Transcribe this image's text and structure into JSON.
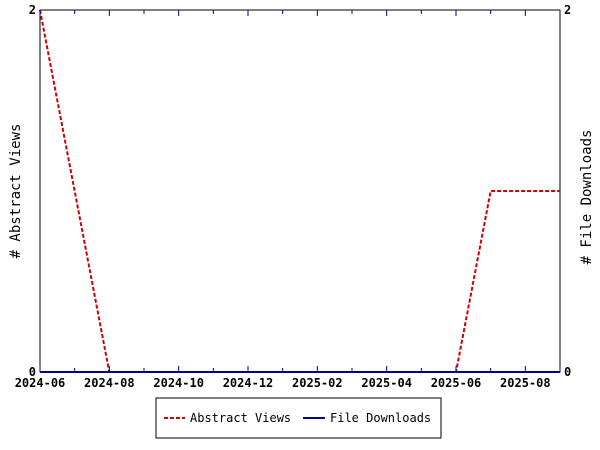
{
  "chart_data": {
    "type": "line",
    "x_unit": "month",
    "x_domain": [
      "2024-06",
      "2025-09"
    ],
    "x_ticks": [
      "2024-06",
      "2024-07",
      "2024-08",
      "2024-09",
      "2024-10",
      "2024-11",
      "2024-12",
      "2025-01",
      "2025-02",
      "2025-03",
      "2025-04",
      "2025-05",
      "2025-06",
      "2025-07",
      "2025-08",
      "2025-09"
    ],
    "x_tick_labels": [
      "2024-06",
      "2024-08",
      "2024-10",
      "2024-12",
      "2025-02",
      "2025-04",
      "2025-06",
      "2025-08"
    ],
    "y_left": {
      "label": "# Abstract Views",
      "range": [
        0,
        2
      ],
      "tick_labels": [
        "0",
        "2"
      ]
    },
    "y_right": {
      "label": "# File Downloads",
      "range": [
        0,
        2
      ],
      "tick_labels": [
        "0",
        "2"
      ]
    },
    "series": [
      {
        "name": "Abstract Views",
        "color": "#cc0000",
        "style": "dashed",
        "axis": "left",
        "x": [
          "2024-06",
          "2024-08",
          "2025-06",
          "2025-07",
          "2025-09"
        ],
        "y": [
          2,
          0,
          0,
          1,
          1
        ]
      },
      {
        "name": "File Downloads",
        "color": "#000099",
        "style": "solid",
        "axis": "right",
        "x": [
          "2024-06",
          "2025-09"
        ],
        "y": [
          0,
          0
        ]
      }
    ],
    "legend": {
      "placement": "bottom-center"
    },
    "grid": false
  }
}
